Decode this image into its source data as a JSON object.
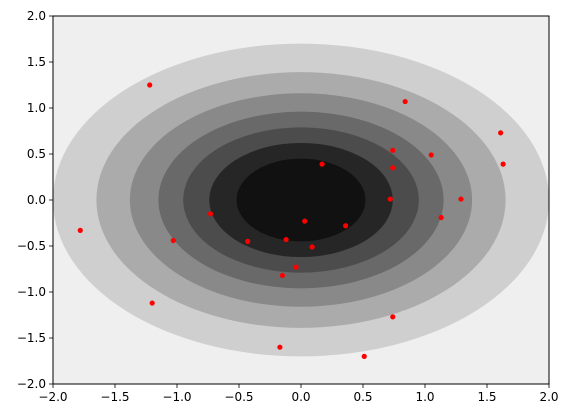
{
  "chart_data": {
    "type": "scatter",
    "title": "",
    "xlabel": "",
    "ylabel": "",
    "xlim": [
      -2.0,
      2.0
    ],
    "ylim": [
      -2.0,
      2.0
    ],
    "grid": false,
    "legend": "none",
    "x_ticks": [
      -2.0,
      -1.5,
      -1.0,
      -0.5,
      0.0,
      0.5,
      1.0,
      1.5,
      2.0
    ],
    "x_tick_labels": [
      "−2.0",
      "−1.5",
      "−1.0",
      "−0.5",
      "0.0",
      "0.5",
      "1.0",
      "1.5",
      "2.0"
    ],
    "y_ticks": [
      -2.0,
      -1.5,
      -1.0,
      -0.5,
      0.0,
      0.5,
      1.0,
      1.5,
      2.0
    ],
    "y_tick_labels": [
      "−2.0",
      "−1.5",
      "−1.0",
      "−0.5",
      "0.0",
      "0.5",
      "1.0",
      "1.5",
      "2.0"
    ],
    "background": {
      "type": "filled-contour",
      "shape": "ellipse",
      "center": [
        0.0,
        0.0
      ],
      "levels": [
        {
          "semi_x": 2.0,
          "semi_y": 1.7,
          "color": "#cfcfcf"
        },
        {
          "semi_x": 1.65,
          "semi_y": 1.39,
          "color": "#ababab"
        },
        {
          "semi_x": 1.38,
          "semi_y": 1.16,
          "color": "#898989"
        },
        {
          "semi_x": 1.15,
          "semi_y": 0.96,
          "color": "#696969"
        },
        {
          "semi_x": 0.95,
          "semi_y": 0.79,
          "color": "#4c4c4c"
        },
        {
          "semi_x": 0.74,
          "semi_y": 0.62,
          "color": "#262626"
        },
        {
          "semi_x": 0.52,
          "semi_y": 0.45,
          "color": "#111111"
        }
      ],
      "outer_color": "#efefef"
    },
    "series": [
      {
        "color": "#ff0000",
        "points": [
          [
            -1.78,
            -0.33
          ],
          [
            -1.22,
            1.25
          ],
          [
            -1.2,
            -1.12
          ],
          [
            -1.03,
            -0.44
          ],
          [
            -0.73,
            -0.15
          ],
          [
            -0.43,
            -0.45
          ],
          [
            -0.17,
            -1.6
          ],
          [
            -0.15,
            -0.82
          ],
          [
            -0.12,
            -0.43
          ],
          [
            -0.04,
            -0.73
          ],
          [
            0.03,
            -0.23
          ],
          [
            0.09,
            -0.51
          ],
          [
            0.17,
            0.39
          ],
          [
            0.36,
            -0.28
          ],
          [
            0.51,
            -1.7
          ],
          [
            0.72,
            0.01
          ],
          [
            0.74,
            0.35
          ],
          [
            0.74,
            0.54
          ],
          [
            0.74,
            -1.27
          ],
          [
            0.84,
            1.07
          ],
          [
            1.05,
            0.49
          ],
          [
            1.13,
            -0.19
          ],
          [
            1.29,
            0.01
          ],
          [
            1.61,
            0.73
          ],
          [
            1.63,
            0.39
          ]
        ]
      }
    ]
  }
}
